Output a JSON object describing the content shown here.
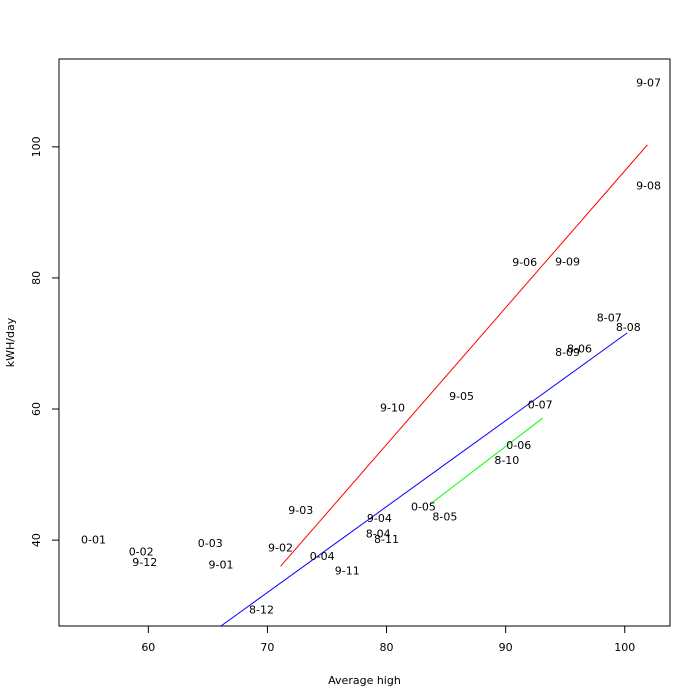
{
  "chart_data": {
    "type": "scatter",
    "title": "",
    "xlabel": "Average high",
    "ylabel": "kWH/day",
    "xlim": [
      52.5,
      103.8
    ],
    "ylim": [
      26.9,
      113.4
    ],
    "x_ticks": [
      60,
      70,
      80,
      90,
      100
    ],
    "y_ticks": [
      40,
      60,
      80,
      100
    ],
    "grid": false,
    "legend": "none",
    "points": [
      {
        "label": "0-01",
        "x": 55.4,
        "y": 40.1
      },
      {
        "label": "0-02",
        "x": 59.4,
        "y": 38.3
      },
      {
        "label": "9-12",
        "x": 59.7,
        "y": 36.7
      },
      {
        "label": "0-03",
        "x": 65.2,
        "y": 39.6
      },
      {
        "label": "9-01",
        "x": 66.1,
        "y": 36.3
      },
      {
        "label": "8-12",
        "x": 69.5,
        "y": 29.4
      },
      {
        "label": "9-02",
        "x": 71.1,
        "y": 38.9
      },
      {
        "label": "9-03",
        "x": 72.8,
        "y": 44.6
      },
      {
        "label": "0-04",
        "x": 74.6,
        "y": 37.6
      },
      {
        "label": "9-11",
        "x": 76.7,
        "y": 35.4
      },
      {
        "label": "9-04",
        "x": 79.4,
        "y": 43.4
      },
      {
        "label": "8-04",
        "x": 79.3,
        "y": 41.0
      },
      {
        "label": "8-11",
        "x": 80.0,
        "y": 40.2
      },
      {
        "label": "9-10",
        "x": 80.5,
        "y": 60.2
      },
      {
        "label": "0-05",
        "x": 83.1,
        "y": 45.1
      },
      {
        "label": "8-05",
        "x": 84.9,
        "y": 43.6
      },
      {
        "label": "9-05",
        "x": 86.3,
        "y": 62.0
      },
      {
        "label": "8-10",
        "x": 90.1,
        "y": 52.2
      },
      {
        "label": "0-06",
        "x": 91.1,
        "y": 54.5
      },
      {
        "label": "9-06",
        "x": 91.6,
        "y": 82.4
      },
      {
        "label": "0-07",
        "x": 92.9,
        "y": 60.7
      },
      {
        "label": "9-09",
        "x": 95.2,
        "y": 82.5
      },
      {
        "label": "8-09",
        "x": 95.2,
        "y": 68.7
      },
      {
        "label": "8-06",
        "x": 96.2,
        "y": 69.2
      },
      {
        "label": "8-07",
        "x": 98.7,
        "y": 74.0
      },
      {
        "label": "8-08",
        "x": 100.3,
        "y": 72.5
      },
      {
        "label": "9-07",
        "x": 102.0,
        "y": 109.8
      },
      {
        "label": "9-08",
        "x": 102.0,
        "y": 94.1
      }
    ],
    "lines": [
      {
        "color": "#ff0000",
        "x": [
          71.1,
          101.9
        ],
        "y": [
          36.0,
          100.3
        ]
      },
      {
        "color": "#0000ff",
        "x": [
          66.1,
          100.2
        ],
        "y": [
          26.9,
          71.6
        ]
      },
      {
        "color": "#00ff00",
        "x": [
          83.6,
          93.1
        ],
        "y": [
          45.4,
          58.6
        ]
      }
    ]
  }
}
